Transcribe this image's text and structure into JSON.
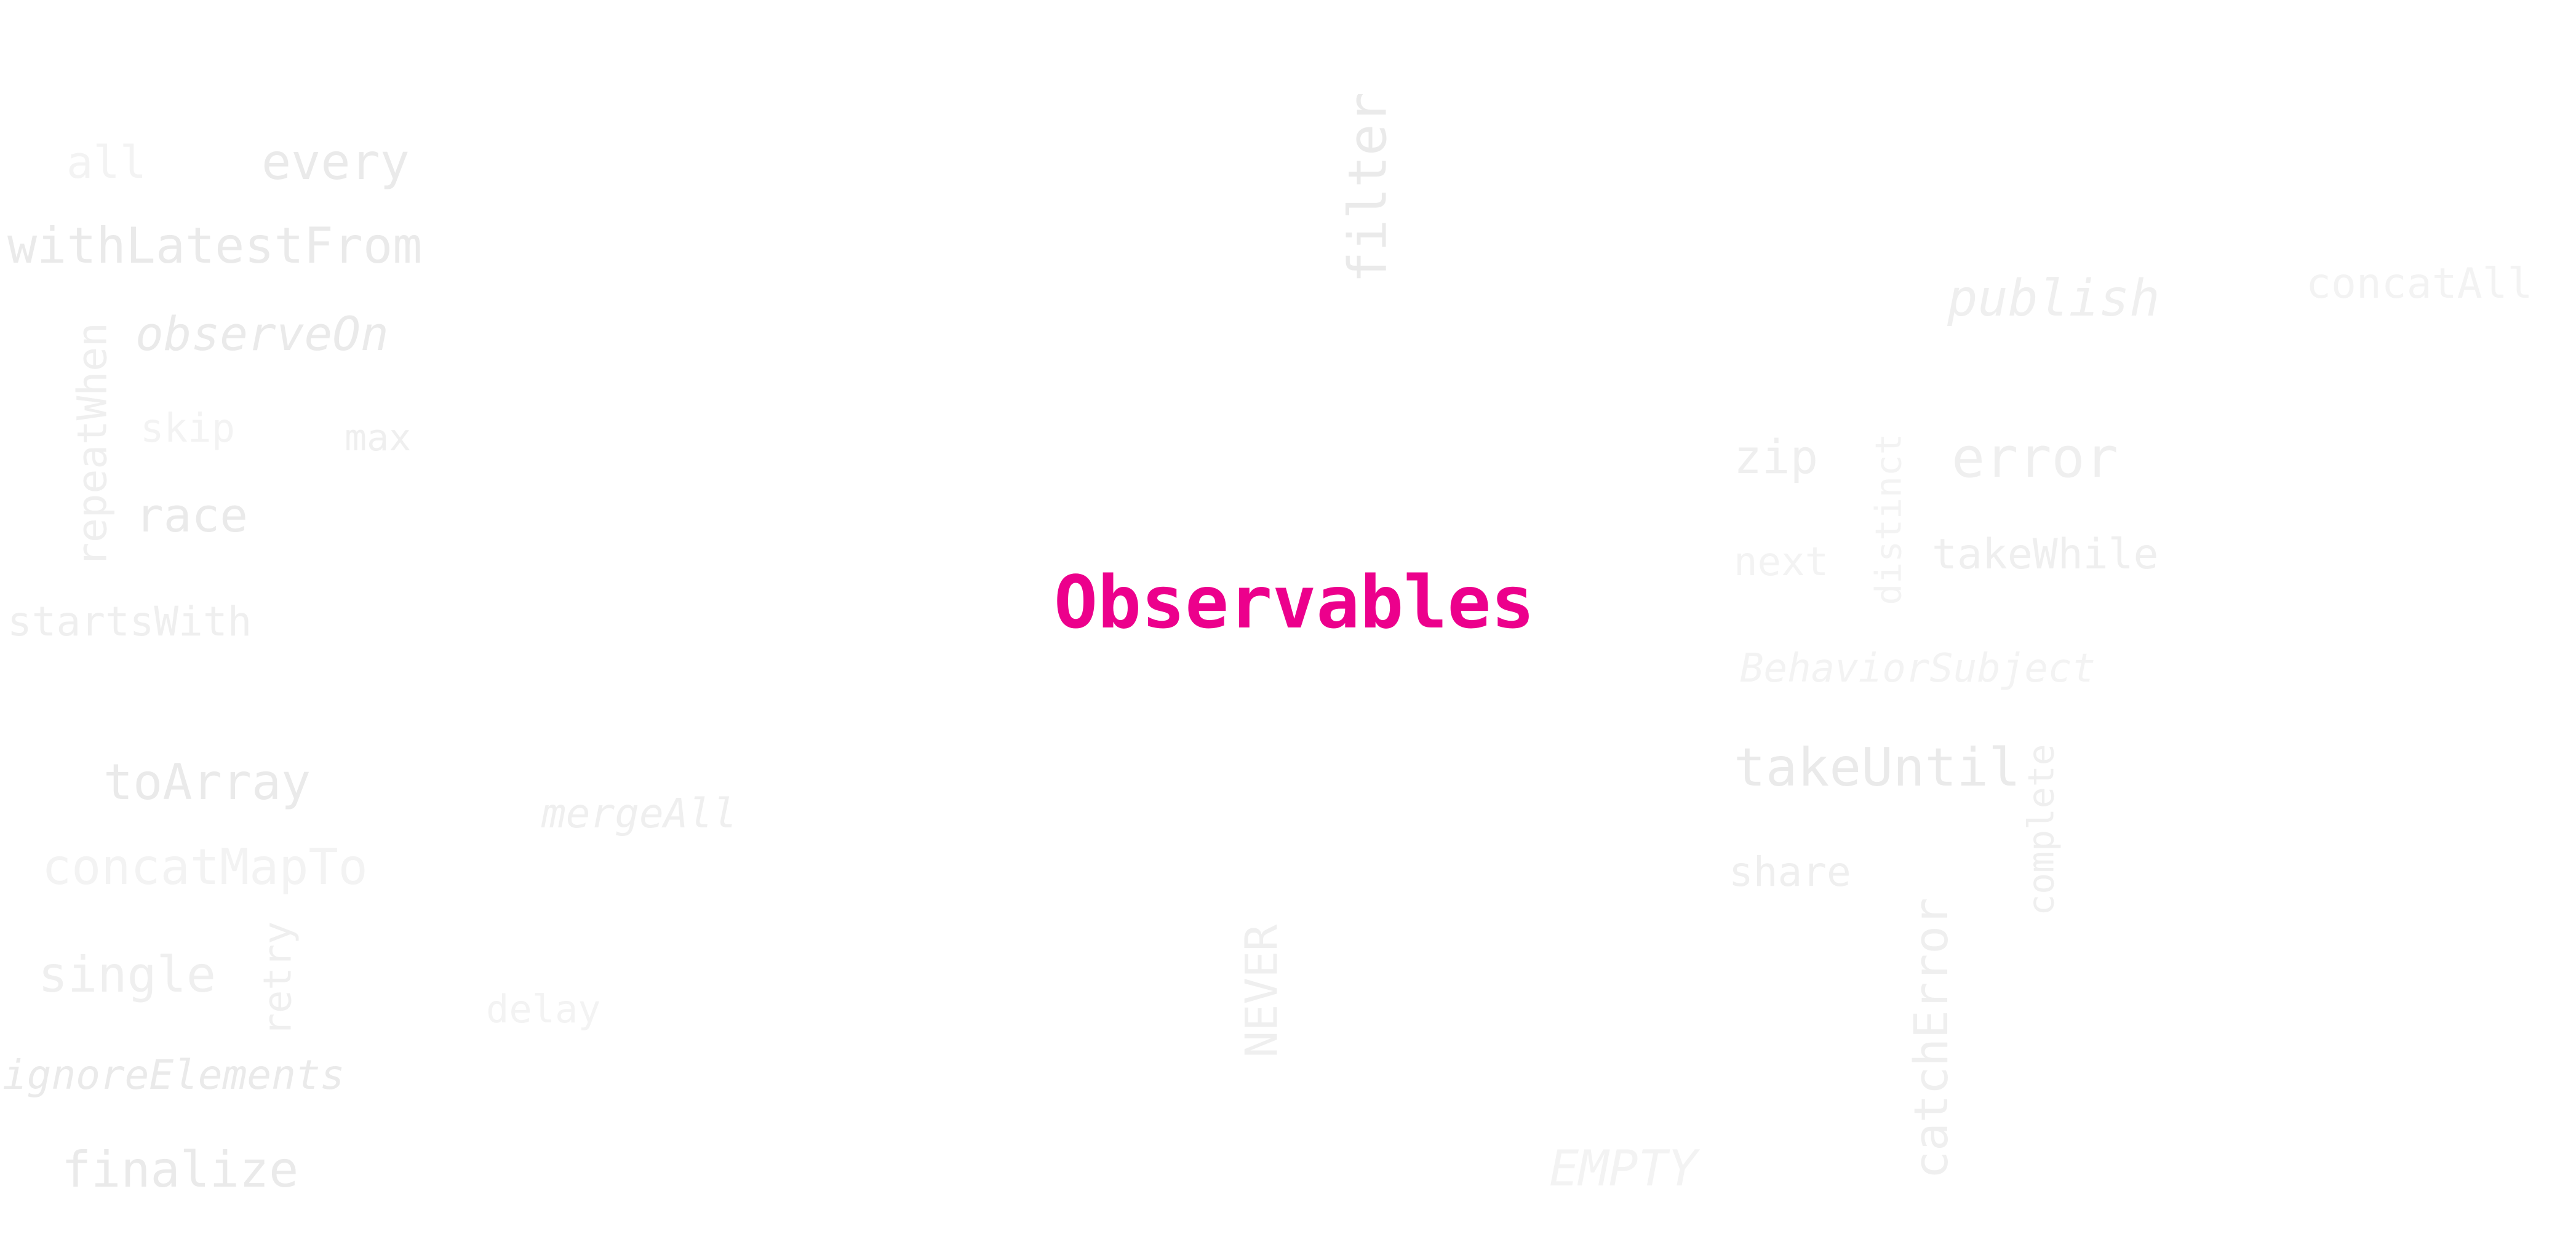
{
  "title": {
    "text": "Observables",
    "color": "#ec008c"
  },
  "words": {
    "all": "all",
    "every": "every",
    "withLatestFrom": "withLatestFrom",
    "observeOn": "observeOn",
    "repeatWhen": "repeatWhen",
    "skip": "skip",
    "max": "max",
    "race": "race",
    "startsWith": "startsWith",
    "toArray": "toArray",
    "concatMapTo": "concatMapTo",
    "single": "single",
    "retry": "retry",
    "ignoreElements": "ignoreElements",
    "finalize": "finalize",
    "mergeAll": "mergeAll",
    "delay": "delay",
    "filter": "filter",
    "never": "NEVER",
    "empty": "EMPTY",
    "publish": "publish",
    "concatAll": "concatAll",
    "zip": "zip",
    "distinct": "distinct",
    "error": "error",
    "next": "next",
    "takeWhile": "takeWhile",
    "behaviorSubject": "BehaviorSubject",
    "takeUntil": "takeUntil",
    "complete": "complete",
    "share": "share",
    "catchError": "catchError"
  }
}
